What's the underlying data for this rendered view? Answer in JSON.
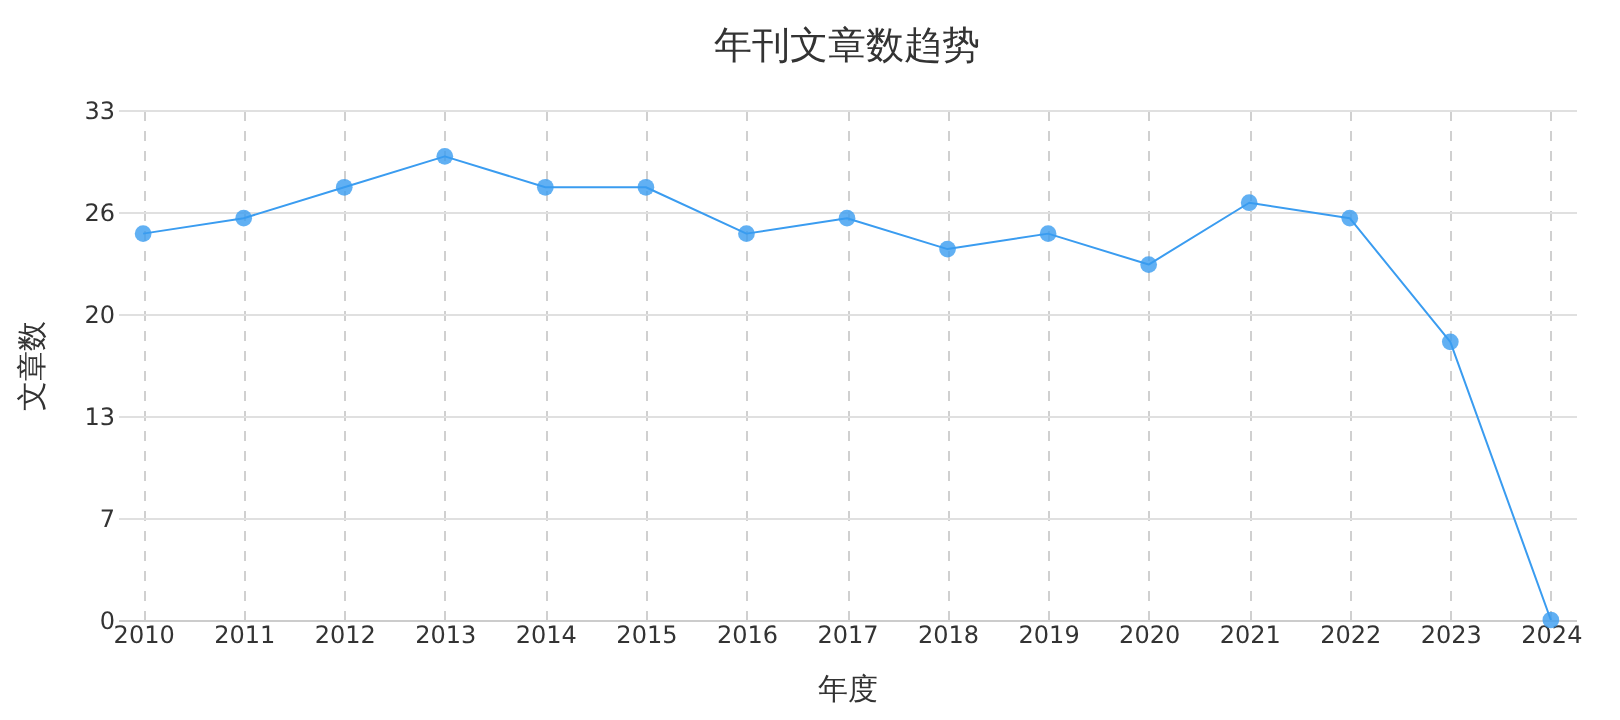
{
  "chart_data": {
    "type": "line",
    "title": "年刊文章数趋势",
    "xlabel": "年度",
    "ylabel": "文章数",
    "categories": [
      "2010",
      "2011",
      "2012",
      "2013",
      "2014",
      "2015",
      "2016",
      "2017",
      "2018",
      "2019",
      "2020",
      "2021",
      "2022",
      "2023",
      "2024"
    ],
    "series": [
      {
        "color": "#3a9cf0",
        "values": [
          25,
          26,
          28,
          30,
          28,
          28,
          25,
          26,
          24,
          25,
          23,
          27,
          26,
          18,
          0
        ]
      }
    ],
    "ylim": [
      0,
      33
    ],
    "yticks": [
      0,
      {
        "value": 6.6,
        "label": "7"
      },
      {
        "value": 13.2,
        "label": "13"
      },
      {
        "value": 19.8,
        "label": "20"
      },
      {
        "value": 26.4,
        "label": "26"
      },
      33
    ],
    "grid": true,
    "marker": "circle",
    "line_style": "solid"
  }
}
